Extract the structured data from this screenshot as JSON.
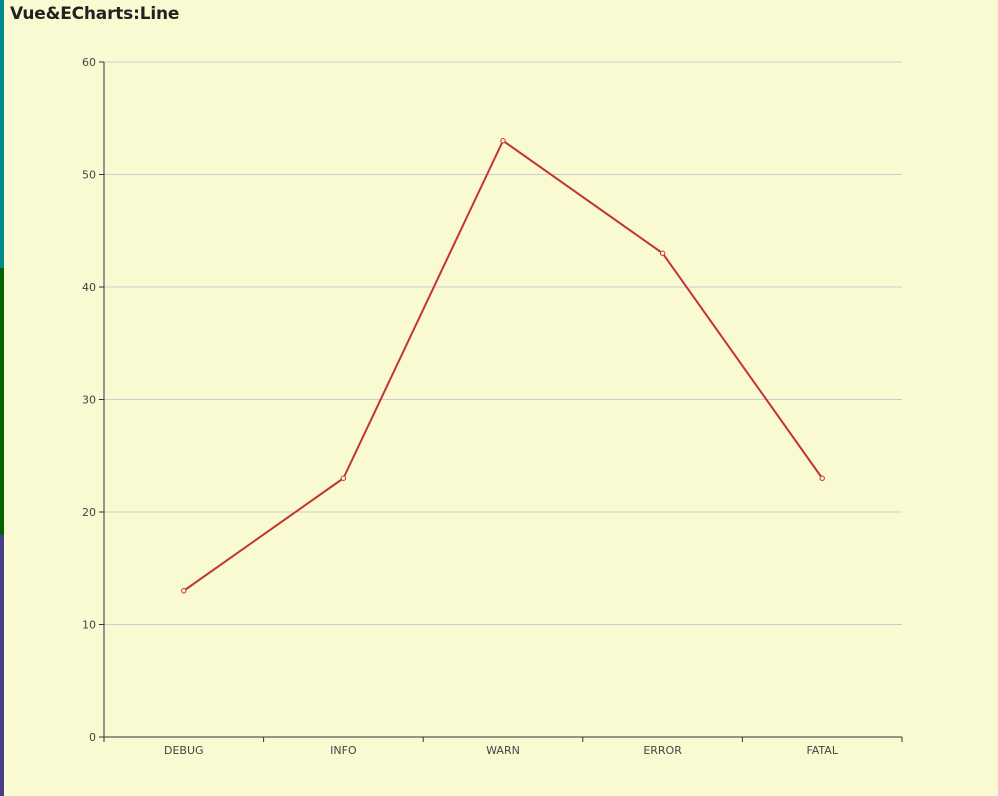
{
  "title": "Vue&ECharts:Line",
  "colors": {
    "background": "#FAFAD2",
    "line": "#C23531",
    "grid": "#CCCCCC",
    "axis": "#333333",
    "strip": [
      "#008B8B",
      "#006400",
      "#483D8B"
    ]
  },
  "chart_data": {
    "type": "line",
    "title": "Vue&ECharts:Line",
    "categories": [
      "DEBUG",
      "INFO",
      "WARN",
      "ERROR",
      "FATAL"
    ],
    "series": [
      {
        "values": [
          13,
          23,
          53,
          43,
          23
        ]
      }
    ],
    "ylim": [
      0,
      60
    ],
    "yticks": [
      0,
      10,
      20,
      30,
      40,
      50,
      60
    ],
    "grid": true,
    "xlabel": "",
    "ylabel": ""
  }
}
